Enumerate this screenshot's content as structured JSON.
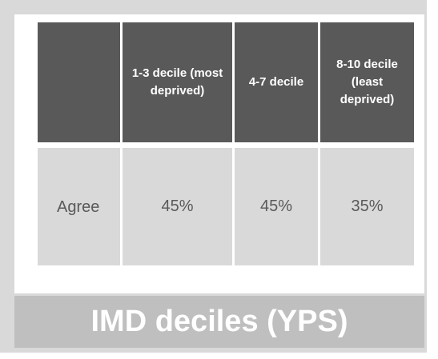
{
  "table": {
    "columns": [
      "1-3  decile (most deprived)",
      "4-7 decile",
      "8-10 decile (least deprived)"
    ],
    "rows": [
      {
        "label": "Agree",
        "values": [
          "45%",
          "45%",
          "35%"
        ]
      }
    ]
  },
  "footer": {
    "title": "IMD deciles (YPS)"
  }
}
